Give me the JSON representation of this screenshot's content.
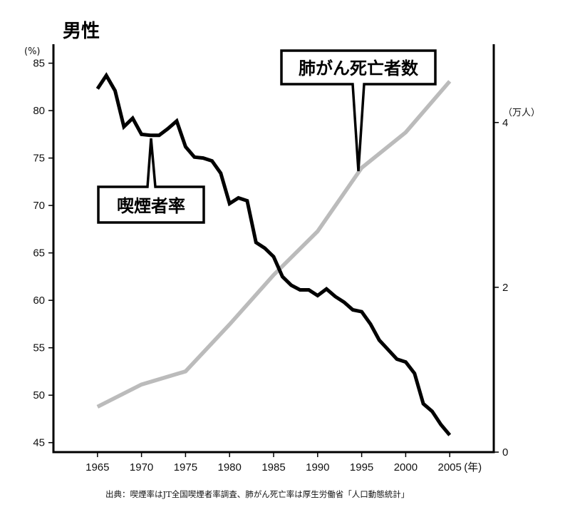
{
  "chart_data": {
    "type": "line",
    "title": "男性",
    "left_axis": {
      "unit": "(%)",
      "ylim": [
        44,
        87
      ],
      "ticks": [
        45,
        50,
        55,
        60,
        65,
        70,
        75,
        80,
        85
      ]
    },
    "right_axis": {
      "unit": "（万人）",
      "ylim": [
        0,
        4.95
      ],
      "ticks": [
        0,
        2,
        4
      ]
    },
    "x_axis": {
      "xlim": [
        1960,
        2010
      ],
      "ticks": [
        1965,
        1970,
        1975,
        1980,
        1985,
        1990,
        1995,
        2000,
        2005
      ],
      "unit_suffix": "(年)"
    },
    "series": [
      {
        "name": "喫煙者率",
        "axis": "left",
        "color": "#000000",
        "x": [
          1965,
          1966,
          1967,
          1968,
          1969,
          1970,
          1971,
          1972,
          1973,
          1974,
          1975,
          1976,
          1977,
          1978,
          1979,
          1980,
          1981,
          1982,
          1983,
          1984,
          1985,
          1986,
          1987,
          1988,
          1989,
          1990,
          1991,
          1992,
          1993,
          1994,
          1995,
          1996,
          1997,
          1998,
          1999,
          2000,
          2001,
          2002,
          2003,
          2004,
          2005
        ],
        "values": [
          82.3,
          83.7,
          82.1,
          78.3,
          79.2,
          77.5,
          77.4,
          77.4,
          78.1,
          78.9,
          76.2,
          75.1,
          75.0,
          74.7,
          73.4,
          70.2,
          70.8,
          70.5,
          66.1,
          65.5,
          64.6,
          62.5,
          61.6,
          61.1,
          61.1,
          60.5,
          61.2,
          60.4,
          59.8,
          59.0,
          58.8,
          57.5,
          55.8,
          54.8,
          53.8,
          53.5,
          52.3,
          49.1,
          48.3,
          46.9,
          45.8
        ]
      },
      {
        "name": "肺がん死亡者数",
        "axis": "right",
        "color": "#bbbbbb",
        "x": [
          1965,
          1970,
          1975,
          1980,
          1985,
          1990,
          1995,
          2000,
          2005
        ],
        "values": [
          0.55,
          0.82,
          0.98,
          1.55,
          2.15,
          2.68,
          3.45,
          3.88,
          4.5
        ]
      }
    ],
    "callouts": [
      {
        "text": "喫煙者率",
        "series": "喫煙者率",
        "x": 1971
      },
      {
        "text": "肺がん死亡者数",
        "series": "肺がん死亡者数",
        "x": 1994.4
      }
    ],
    "source": "出典：喫煙率はJT全国喫煙者率調査、肺がん死亡率は厚生労働省「人口動態統計」"
  }
}
